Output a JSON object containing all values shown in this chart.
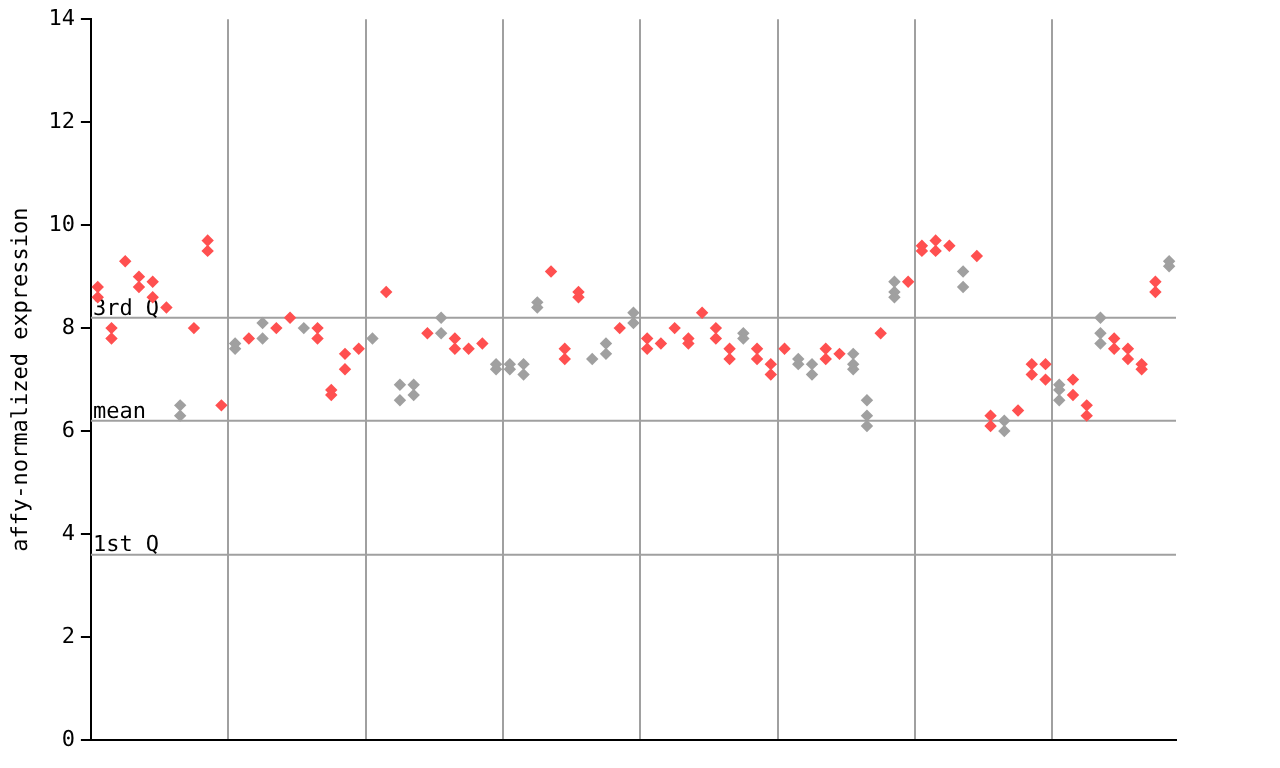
{
  "chart_data": {
    "type": "scatter",
    "ylabel": "affy-normalized expression",
    "categories": [
      null,
      null,
      null,
      null,
      null,
      null,
      null,
      null,
      null,
      null,
      null,
      null,
      null,
      null,
      null,
      null,
      null,
      null,
      null,
      null,
      null,
      null,
      null,
      null,
      null,
      null,
      null,
      null,
      null,
      null,
      null,
      null,
      null,
      null,
      null,
      null,
      null,
      null,
      null,
      null,
      null,
      null,
      null,
      null,
      null,
      null,
      null,
      null,
      null,
      null,
      null,
      null,
      null,
      null,
      null,
      null,
      null,
      null,
      null,
      null,
      null,
      null,
      null,
      null,
      null,
      null,
      null,
      null,
      null,
      null,
      null,
      null,
      null,
      null,
      null,
      null,
      null,
      null,
      null
    ],
    "ylim": [
      0,
      14
    ],
    "yticks": [
      0,
      2,
      4,
      6,
      8,
      10,
      12,
      14
    ],
    "grid": "x",
    "tick_labels": "y",
    "marker": "diamond",
    "ref_lines": [
      {
        "axis": "y",
        "value": 8.2,
        "label": "3rd Q",
        "color": "#a0a0a0"
      },
      {
        "axis": "y",
        "value": 6.2,
        "label": "mean",
        "color": "#a0a0a0"
      },
      {
        "axis": "y",
        "value": 3.6,
        "label": "1st Q",
        "color": "#a0a0a0"
      }
    ],
    "series": [
      {
        "values": [
          8.8,
          8.0,
          9.3,
          9.0,
          8.9,
          8.4,
          6.5,
          8.0,
          9.7,
          6.5,
          7.7,
          7.8,
          8.1,
          8.0,
          8.2,
          8.0,
          8.0,
          6.8,
          7.5,
          7.6,
          7.8,
          8.7,
          6.9,
          6.9,
          7.9,
          8.2,
          7.8,
          7.6,
          7.7,
          7.3,
          7.3,
          7.3,
          8.5,
          9.1,
          7.6,
          8.7,
          7.4,
          7.7,
          8.0,
          8.3,
          7.8,
          7.7,
          8.0,
          7.8,
          8.3,
          8.0,
          7.6,
          7.9,
          7.6,
          7.3,
          7.6,
          7.4,
          7.3,
          7.6,
          7.5,
          7.5,
          6.6,
          7.9,
          8.9,
          8.9,
          9.6,
          9.7,
          9.6,
          9.1,
          9.4,
          6.3,
          6.2,
          6.4,
          7.3,
          7.3,
          6.9,
          7.0,
          6.5,
          8.2,
          7.8,
          7.6,
          7.3,
          8.9,
          9.3
        ],
        "colors": [
          "#ff5050",
          "#ff5050",
          "#ff5050",
          "#ff5050",
          "#ff5050",
          "#ff5050",
          "#a0a0a0",
          "#ff5050",
          "#ff5050",
          "#ff5050",
          "#a0a0a0",
          "#ff5050",
          "#a0a0a0",
          "#ff5050",
          "#ff5050",
          "#a0a0a0",
          "#ff5050",
          "#ff5050",
          "#ff5050",
          "#ff5050",
          "#a0a0a0",
          "#ff5050",
          "#a0a0a0",
          "#a0a0a0",
          "#ff5050",
          "#a0a0a0",
          "#ff5050",
          "#ff5050",
          "#ff5050",
          "#a0a0a0",
          "#a0a0a0",
          "#a0a0a0",
          "#a0a0a0",
          "#ff5050",
          "#ff5050",
          "#ff5050",
          "#a0a0a0",
          "#a0a0a0",
          "#ff5050",
          "#a0a0a0",
          "#ff5050",
          "#ff5050",
          "#ff5050",
          "#ff5050",
          "#ff5050",
          "#ff5050",
          "#ff5050",
          "#a0a0a0",
          "#ff5050",
          "#ff5050",
          "#ff5050",
          "#a0a0a0",
          "#a0a0a0",
          "#ff5050",
          "#ff5050",
          "#a0a0a0",
          "#a0a0a0",
          "#ff5050",
          "#a0a0a0",
          "#ff5050",
          "#ff5050",
          "#ff5050",
          "#ff5050",
          "#a0a0a0",
          "#ff5050",
          "#ff5050",
          "#a0a0a0",
          "#ff5050",
          "#ff5050",
          "#ff5050",
          "#a0a0a0",
          "#ff5050",
          "#ff5050",
          "#a0a0a0",
          "#ff5050",
          "#ff5050",
          "#ff5050",
          "#ff5050",
          "#a0a0a0"
        ]
      },
      {
        "values": [
          8.6,
          7.8,
          null,
          8.8,
          8.6,
          null,
          6.3,
          null,
          9.5,
          null,
          7.6,
          null,
          7.8,
          null,
          null,
          null,
          7.8,
          6.7,
          7.2,
          null,
          null,
          null,
          6.6,
          6.7,
          null,
          7.9,
          7.6,
          null,
          null,
          7.2,
          7.2,
          7.1,
          8.4,
          null,
          7.4,
          8.6,
          null,
          7.5,
          null,
          8.1,
          7.6,
          null,
          null,
          7.7,
          null,
          7.8,
          7.4,
          7.8,
          7.4,
          7.1,
          null,
          7.3,
          7.1,
          7.4,
          null,
          7.3,
          6.3,
          null,
          8.7,
          null,
          9.5,
          9.5,
          null,
          8.8,
          null,
          6.1,
          6.0,
          null,
          7.1,
          7.0,
          6.8,
          6.7,
          6.3,
          7.9,
          7.6,
          7.4,
          7.2,
          8.7,
          9.2
        ],
        "colors": [
          "#ff5050",
          "#ff5050",
          "#ff5050",
          "#ff5050",
          "#ff5050",
          "#ff5050",
          "#a0a0a0",
          "#ff5050",
          "#ff5050",
          "#ff5050",
          "#a0a0a0",
          "#ff5050",
          "#a0a0a0",
          "#ff5050",
          "#ff5050",
          "#a0a0a0",
          "#ff5050",
          "#ff5050",
          "#ff5050",
          "#ff5050",
          "#a0a0a0",
          "#ff5050",
          "#a0a0a0",
          "#a0a0a0",
          "#ff5050",
          "#a0a0a0",
          "#ff5050",
          "#ff5050",
          "#ff5050",
          "#a0a0a0",
          "#a0a0a0",
          "#a0a0a0",
          "#a0a0a0",
          "#ff5050",
          "#ff5050",
          "#ff5050",
          "#a0a0a0",
          "#a0a0a0",
          "#ff5050",
          "#a0a0a0",
          "#ff5050",
          "#ff5050",
          "#ff5050",
          "#ff5050",
          "#ff5050",
          "#ff5050",
          "#ff5050",
          "#a0a0a0",
          "#ff5050",
          "#ff5050",
          "#ff5050",
          "#a0a0a0",
          "#a0a0a0",
          "#ff5050",
          "#ff5050",
          "#a0a0a0",
          "#a0a0a0",
          "#ff5050",
          "#a0a0a0",
          "#ff5050",
          "#ff5050",
          "#ff5050",
          "#ff5050",
          "#a0a0a0",
          "#ff5050",
          "#ff5050",
          "#a0a0a0",
          "#ff5050",
          "#ff5050",
          "#ff5050",
          "#a0a0a0",
          "#ff5050",
          "#ff5050",
          "#a0a0a0",
          "#ff5050",
          "#ff5050",
          "#ff5050",
          "#ff5050",
          "#a0a0a0"
        ]
      },
      {
        "color": "#a0a0a0",
        "values": [
          null,
          null,
          null,
          null,
          null,
          null,
          null,
          null,
          null,
          null,
          null,
          null,
          null,
          null,
          null,
          null,
          null,
          null,
          null,
          null,
          null,
          null,
          null,
          null,
          null,
          null,
          null,
          null,
          null,
          null,
          null,
          null,
          null,
          null,
          null,
          null,
          null,
          null,
          null,
          null,
          null,
          null,
          null,
          null,
          null,
          null,
          null,
          null,
          null,
          null,
          null,
          null,
          null,
          null,
          null,
          7.2,
          6.1,
          null,
          8.6,
          null,
          null,
          null,
          null,
          null,
          null,
          null,
          null,
          null,
          null,
          null,
          6.6,
          null,
          null,
          7.7,
          null,
          null,
          null,
          null,
          null
        ]
      }
    ]
  }
}
